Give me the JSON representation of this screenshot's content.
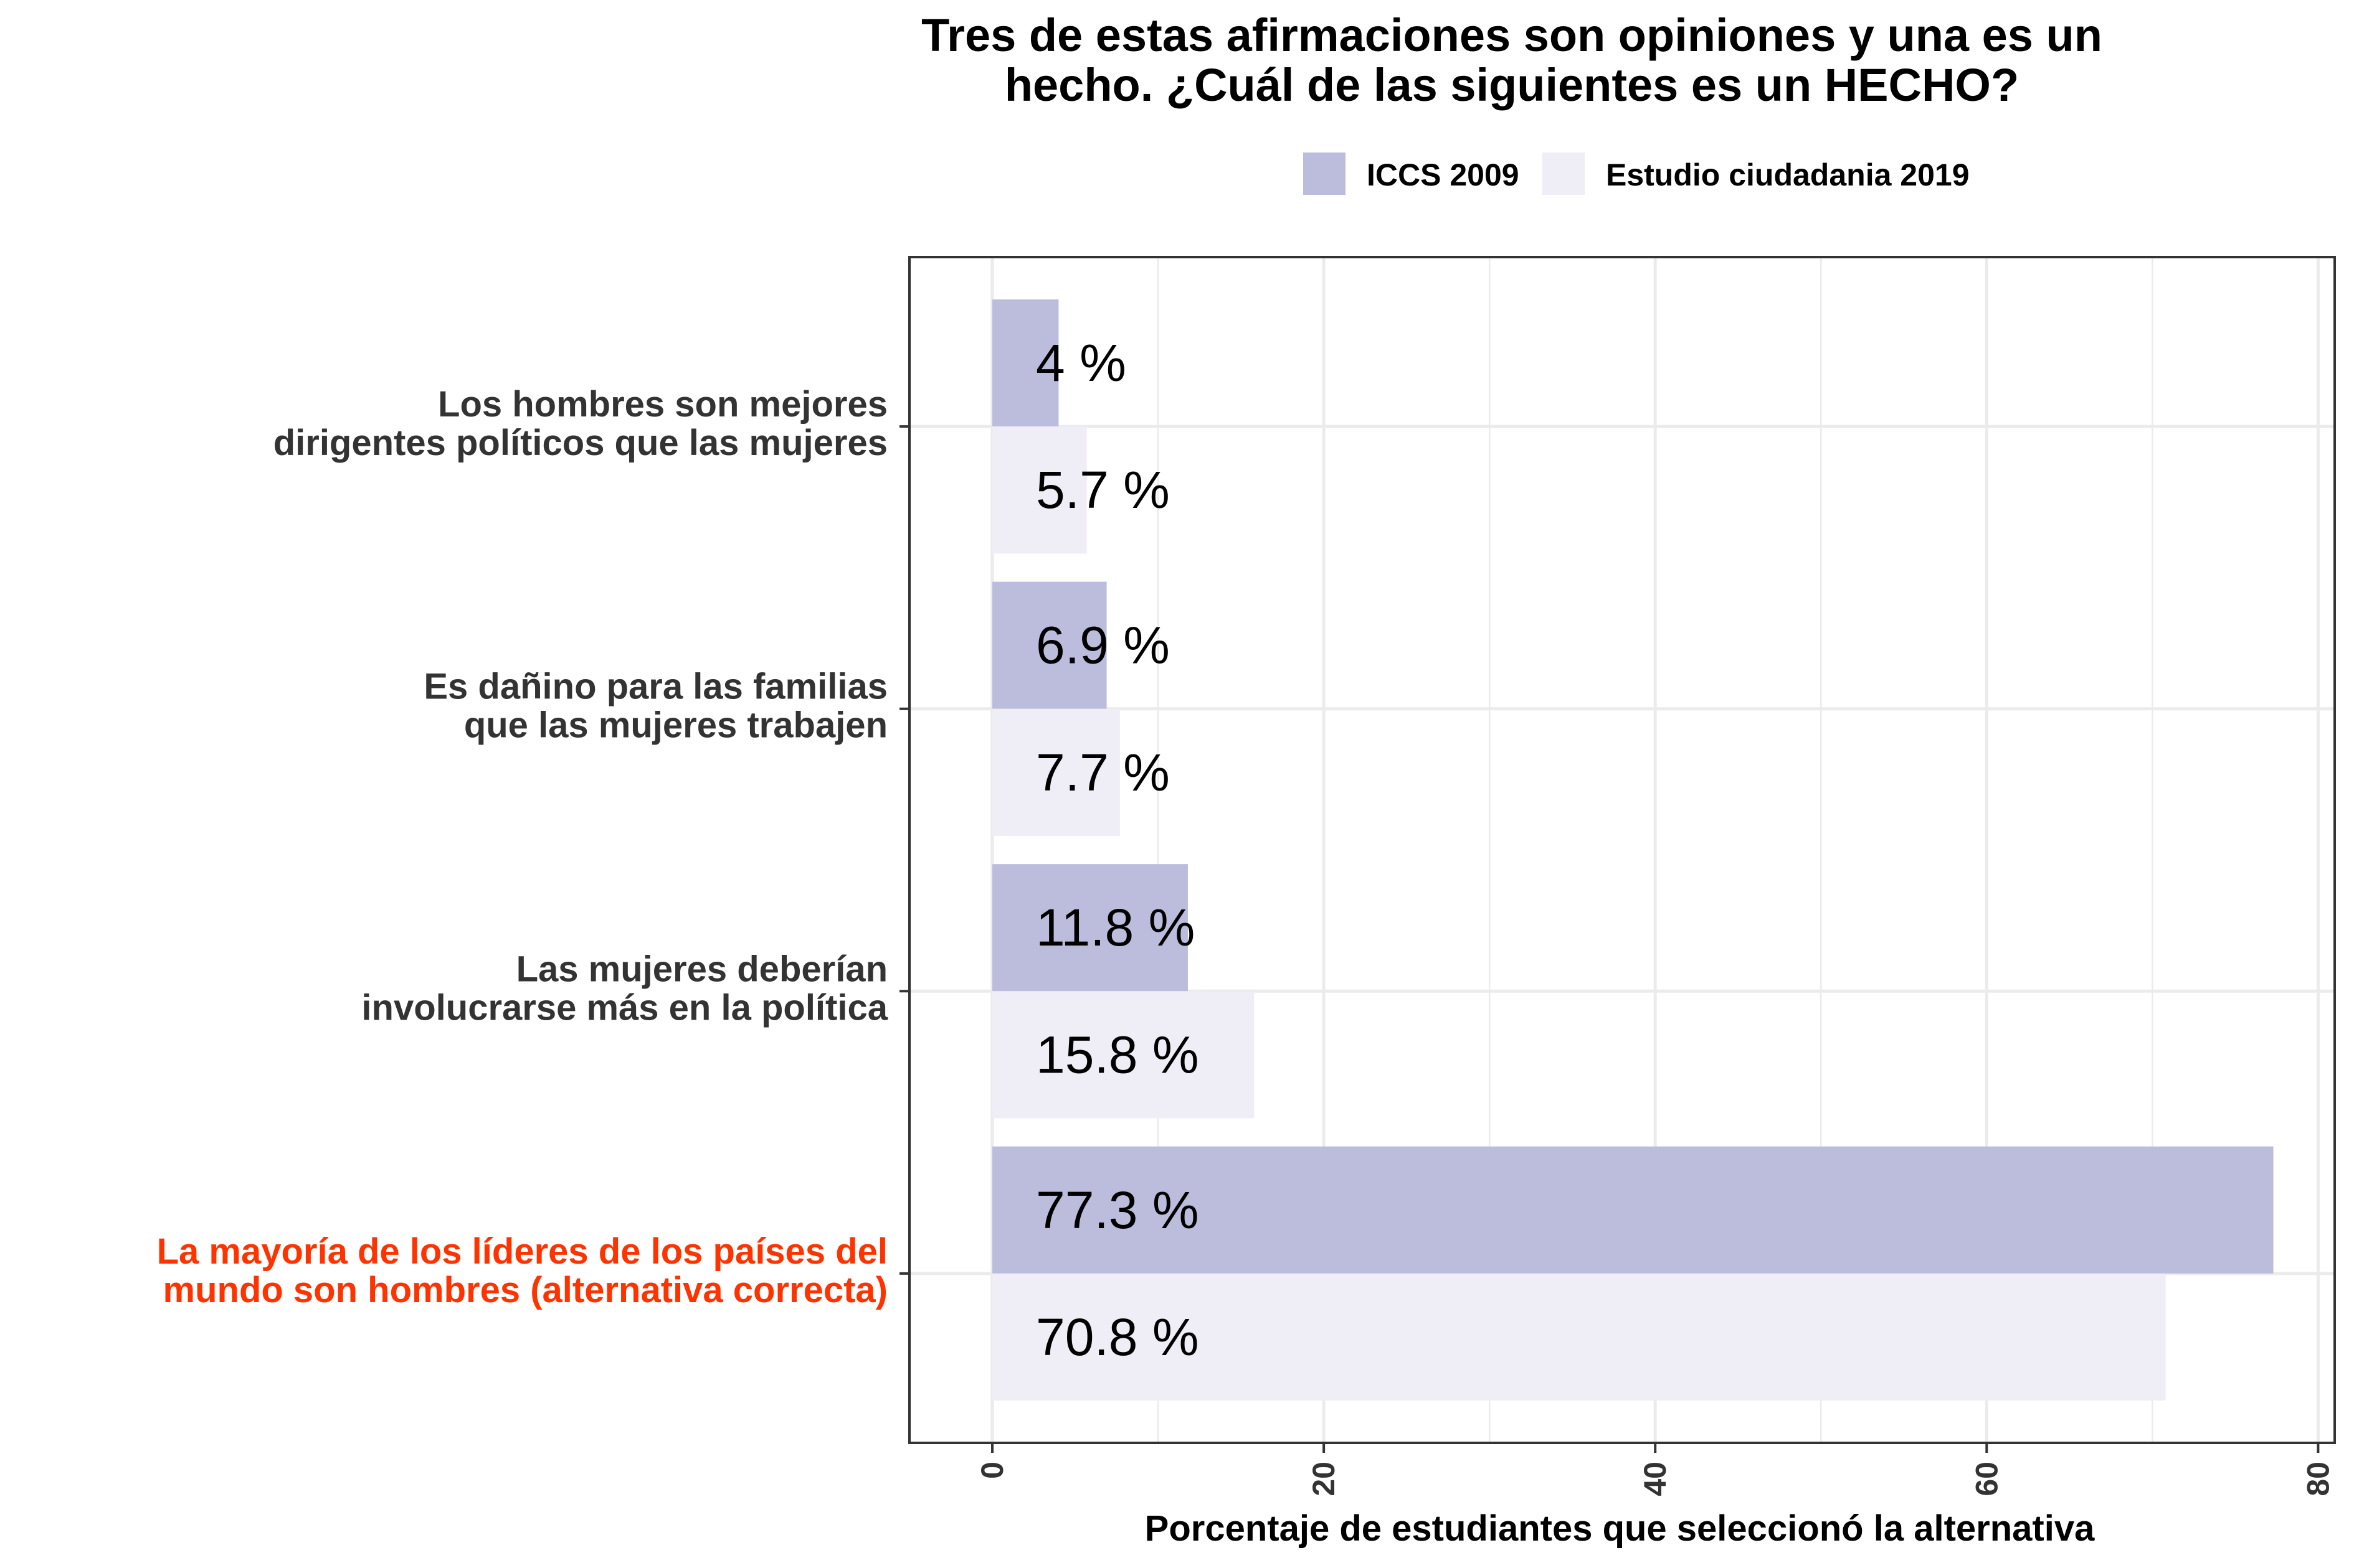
{
  "chart_data": {
    "type": "bar",
    "orientation": "horizontal",
    "title": "Tres de estas afirmaciones son opiniones y una es un hecho. ¿Cuál de las siguientes es un HECHO?",
    "title_lines": [
      "Tres de estas afirmaciones son opiniones y una es un",
      "hecho. ¿Cuál de las siguientes es un HECHO?"
    ],
    "xlabel": "Porcentaje de estudiantes que seleccionó la alternativa",
    "ylabel": "",
    "xlim": [
      -5,
      81
    ],
    "x_ticks": [
      0,
      20,
      40,
      60,
      80
    ],
    "legend_position": "top",
    "grid": true,
    "categories": [
      {
        "lines": [
          "Los hombres  son mejores",
          "dirigentes  políticos  que las mujeres"
        ],
        "highlight": false
      },
      {
        "lines": [
          "Es dañino  para las familias",
          "que las mujeres  trabajen"
        ],
        "highlight": false
      },
      {
        "lines": [
          "Las mujeres  deberían",
          "involucrarse  más  en la política"
        ],
        "highlight": false
      },
      {
        "lines": [
          "La mayoría  de los líderes  de los países  del",
          "mundo  son hombres  (alternativa  correcta)"
        ],
        "highlight": true
      }
    ],
    "series": [
      {
        "name": "ICCS 2009",
        "color": "#bcbddc",
        "values": [
          4,
          6.9,
          11.8,
          77.3
        ],
        "labels": [
          "4 %",
          "6.9 %",
          "11.8 %",
          "77.3 %"
        ]
      },
      {
        "name": "Estudio ciudadania 2019",
        "color": "#efedf5",
        "values": [
          5.7,
          7.7,
          15.8,
          70.8
        ],
        "labels": [
          "5.7 %",
          "7.7 %",
          "15.8 %",
          "70.8 %"
        ]
      }
    ],
    "highlight_color": "#ff3300"
  }
}
